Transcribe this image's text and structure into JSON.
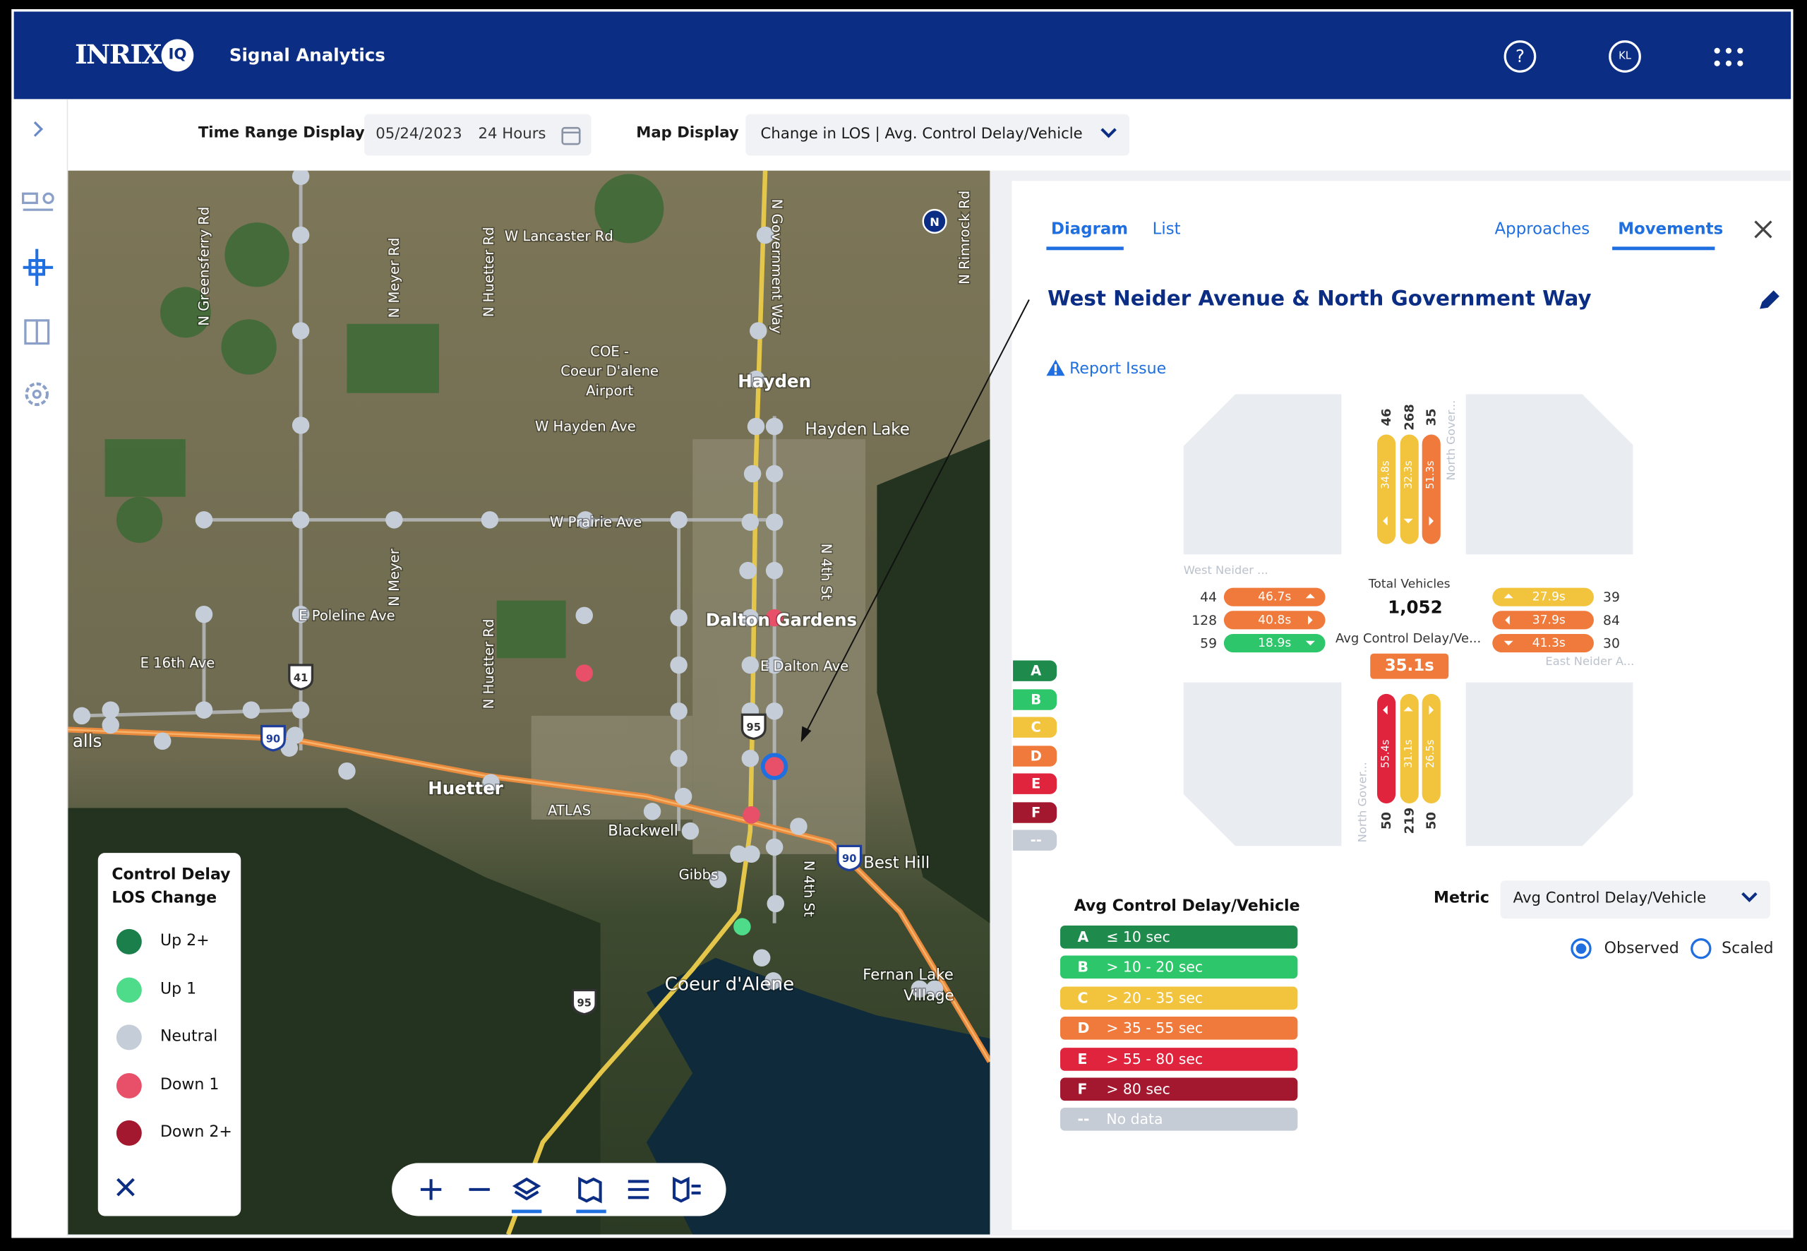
{
  "header": {
    "brand": "INRIX",
    "brand_badge": "IQ",
    "app": "Signal Analytics",
    "help": "?",
    "user": "KL"
  },
  "toolbar": {
    "time_label": "Time Range Display",
    "date": "05/24/2023",
    "duration": "24 Hours",
    "map_label": "Map Display",
    "map_value": "Change in LOS | Avg. Control Delay/Vehicle"
  },
  "map": {
    "labels": [
      "W Lancaster Rd",
      "COE -",
      "Coeur D'alene",
      "Airport",
      "Hayden",
      "Hayden Lake",
      "W Hayden Ave",
      "W Prairie Ave",
      "Dalton Gardens",
      "E Dalton Ave",
      "E Poleline Ave",
      "E 16th Ave",
      "Huetter",
      "ATLAS",
      "Blackwell",
      "Best Hill",
      "Coeur d'Alene",
      "Fernan Lake",
      "Village",
      "N Greensferry Rd",
      "N Meyer Rd",
      "N Huetter Rd",
      "N Government Way",
      "N Rimrock Rd",
      "N 4th St",
      "N Meyer",
      "N Huetter Rd",
      "alls",
      "Gibbs",
      "N 4th St"
    ],
    "shields": [
      "41",
      "90",
      "95",
      "90",
      "95"
    ],
    "compass": "N",
    "legend": {
      "title": [
        "Control Delay",
        "LOS Change"
      ],
      "items": [
        {
          "label": "Up 2+",
          "color": "#1a7f4a"
        },
        {
          "label": "Up 1",
          "color": "#4fdc8a"
        },
        {
          "label": "Neutral",
          "color": "#c5cdd8"
        },
        {
          "label": "Down 1",
          "color": "#e8506a"
        },
        {
          "label": "Down 2+",
          "color": "#a3182e"
        }
      ]
    }
  },
  "panel": {
    "tabs": [
      "Diagram",
      "List"
    ],
    "right_tabs": [
      "Approaches",
      "Movements"
    ],
    "title": "West Neider Avenue & North Government Way",
    "report": "Report Issue",
    "diagram": {
      "total_label": "Total Vehicles",
      "total": "1,052",
      "avg_label": "Avg Control Delay/Ve...",
      "avg": "35.1s",
      "avg_color": "#f07a3c",
      "north": {
        "street": "North Gover...",
        "counts": [
          46,
          268,
          35
        ],
        "delays": [
          "34.8s",
          "32.3s",
          "51.3s"
        ],
        "colors": [
          "#f2c43d",
          "#f2c43d",
          "#f07a3c"
        ]
      },
      "west": {
        "street": "West Neider ...",
        "counts": [
          44,
          128,
          59
        ],
        "delays": [
          "46.7s",
          "40.8s",
          "18.9s"
        ],
        "colors": [
          "#f07a3c",
          "#f07a3c",
          "#2ec66a"
        ]
      },
      "east": {
        "street": "East Neider A...",
        "counts": [
          39,
          84,
          30
        ],
        "delays": [
          "27.9s",
          "37.9s",
          "41.3s"
        ],
        "colors": [
          "#f2c43d",
          "#f07a3c",
          "#f07a3c"
        ]
      },
      "south": {
        "street": "North Gover...",
        "counts": [
          50,
          219,
          50
        ],
        "delays": [
          "55.4s",
          "31.1s",
          "26.5s"
        ],
        "colors": [
          "#e0243d",
          "#f2c43d",
          "#f2c43d"
        ]
      }
    },
    "los_legend": {
      "title": "Avg Control Delay/Vehicle",
      "rows": [
        {
          "grade": "A",
          "range": "≤ 10 sec",
          "color": "#1e8a4c"
        },
        {
          "grade": "B",
          "range": "> 10 - 20 sec",
          "color": "#2ec66a"
        },
        {
          "grade": "C",
          "range": "> 20 - 35 sec",
          "color": "#f2c43d"
        },
        {
          "grade": "D",
          "range": "> 35 - 55 sec",
          "color": "#f07a3c"
        },
        {
          "grade": "E",
          "range": "> 55 - 80 sec",
          "color": "#e0243d"
        },
        {
          "grade": "F",
          "range": "> 80 sec",
          "color": "#a3182e"
        },
        {
          "grade": "--",
          "range": "No data",
          "color": "#c5ccd6"
        }
      ]
    },
    "metric": {
      "label": "Metric",
      "value": "Avg Control Delay/Vehicle",
      "options": [
        "Observed",
        "Scaled"
      ]
    }
  }
}
